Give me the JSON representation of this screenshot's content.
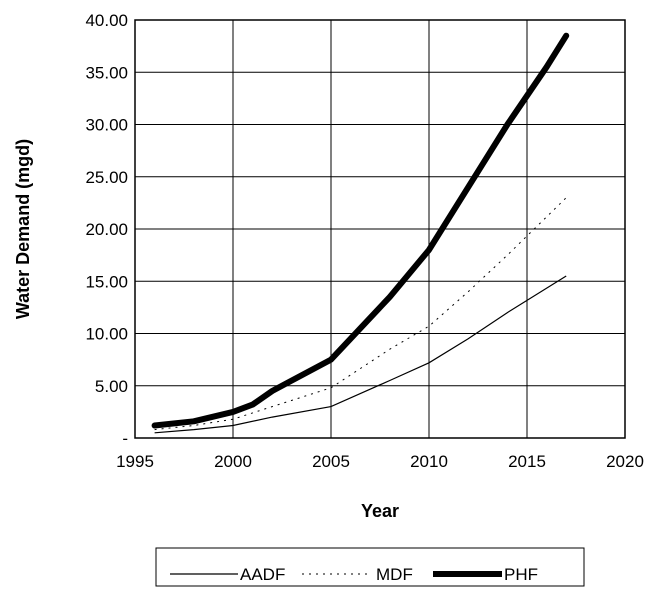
{
  "chart_data": {
    "type": "line",
    "title": "",
    "xlabel": "Year",
    "ylabel": "Water Demand (mgd)",
    "xlim": [
      1995,
      2020
    ],
    "ylim": [
      0,
      40
    ],
    "x_ticks": [
      "1995",
      "2000",
      "2005",
      "2010",
      "2015",
      "2020"
    ],
    "y_ticks": [
      "-",
      "5.00",
      "10.00",
      "15.00",
      "20.00",
      "25.00",
      "30.00",
      "35.00",
      "40.00"
    ],
    "grid": true,
    "legend_position": "bottom",
    "series": [
      {
        "name": "AADF",
        "style": "thin-solid",
        "x": [
          1996,
          1998,
          2000,
          2002,
          2005,
          2008,
          2010,
          2012,
          2014,
          2017
        ],
        "y": [
          0.5,
          0.8,
          1.2,
          2.0,
          3.0,
          5.5,
          7.2,
          9.5,
          12.0,
          15.5
        ]
      },
      {
        "name": "MDF",
        "style": "dotted",
        "x": [
          1996,
          1998,
          2000,
          2002,
          2005,
          2008,
          2010,
          2012,
          2014,
          2017
        ],
        "y": [
          0.8,
          1.2,
          1.8,
          3.0,
          4.8,
          8.5,
          10.7,
          14.0,
          17.5,
          23.0
        ]
      },
      {
        "name": "PHF",
        "style": "thick-solid",
        "x": [
          1996,
          1998,
          2000,
          2001,
          2002,
          2003,
          2005,
          2007,
          2008,
          2010,
          2012,
          2014,
          2016,
          2017
        ],
        "y": [
          1.2,
          1.6,
          2.5,
          3.2,
          4.5,
          5.5,
          7.5,
          11.5,
          13.5,
          18.0,
          24.0,
          30.0,
          35.5,
          38.5
        ]
      }
    ]
  }
}
